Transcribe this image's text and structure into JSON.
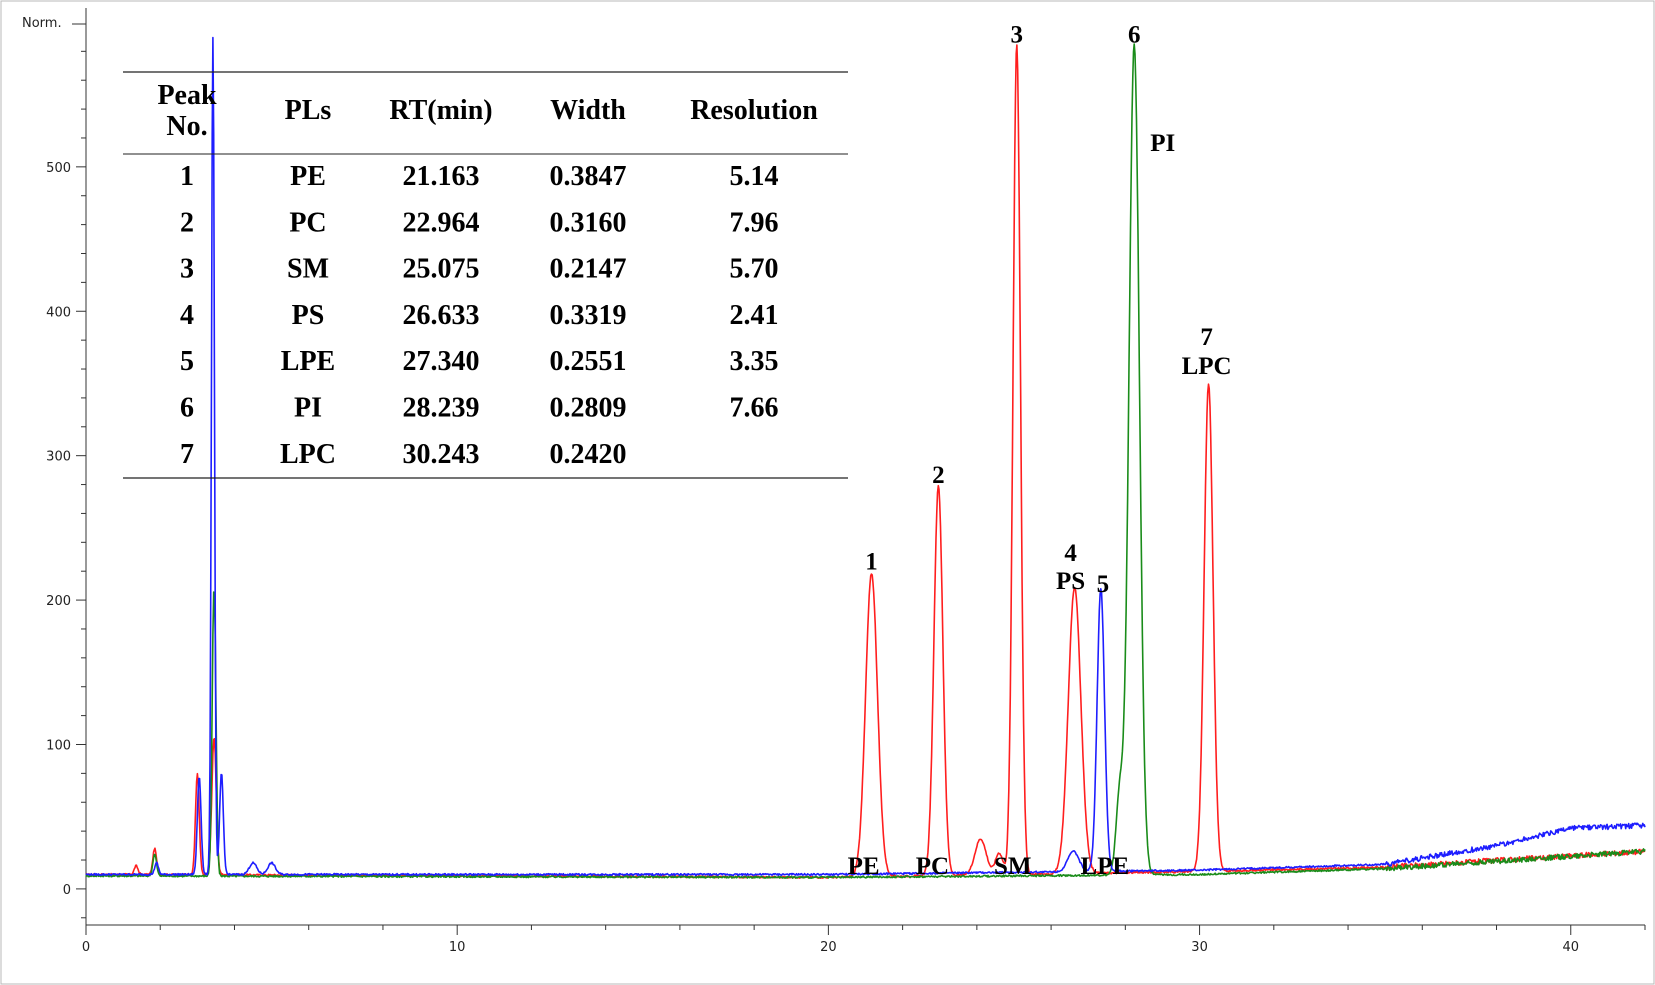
{
  "chart_data": {
    "type": "line",
    "y_axis_label": "Norm.",
    "xlim": [
      0,
      42
    ],
    "ylim": [
      -25,
      610
    ],
    "x_ticks": [
      "0",
      "10",
      "20",
      "30",
      "40"
    ],
    "x_tick_values": [
      0,
      10,
      20,
      30,
      40
    ],
    "y_ticks": [
      "0",
      "100",
      "200",
      "300",
      "400",
      "500"
    ],
    "y_tick_values": [
      0,
      100,
      200,
      300,
      400,
      500
    ],
    "colors": {
      "red": "#ff1e1e",
      "blue": "#1e1eff",
      "green": "#1a8c1a"
    },
    "series": [
      {
        "name": "red",
        "baseline": [
          [
            0,
            10
          ],
          [
            1.5,
            10
          ],
          [
            20,
            8
          ],
          [
            30,
            12
          ],
          [
            35,
            15
          ],
          [
            42,
            26
          ]
        ],
        "peaks": [
          [
            1.35,
            6,
            0.05
          ],
          [
            1.85,
            18,
            0.05
          ],
          [
            3.0,
            70,
            0.05
          ],
          [
            3.45,
            95,
            0.06
          ],
          [
            21.163,
            210,
            0.16
          ],
          [
            22.964,
            270,
            0.12
          ],
          [
            24.1,
            25,
            0.15
          ],
          [
            24.6,
            15,
            0.1
          ],
          [
            25.075,
            575,
            0.1
          ],
          [
            26.633,
            198,
            0.17
          ],
          [
            30.243,
            338,
            0.12
          ]
        ]
      },
      {
        "name": "blue",
        "baseline": [
          [
            0,
            10
          ],
          [
            1.5,
            10
          ],
          [
            20,
            10
          ],
          [
            30,
            13
          ],
          [
            35,
            17
          ],
          [
            38,
            30
          ],
          [
            40,
            42
          ],
          [
            42,
            44
          ]
        ],
        "peaks": [
          [
            1.9,
            8,
            0.05
          ],
          [
            3.05,
            68,
            0.05
          ],
          [
            3.42,
            580,
            0.04
          ],
          [
            3.65,
            70,
            0.05
          ],
          [
            4.5,
            8,
            0.1
          ],
          [
            5.0,
            8,
            0.1
          ],
          [
            26.6,
            14,
            0.15
          ],
          [
            27.34,
            196,
            0.1
          ]
        ]
      },
      {
        "name": "green",
        "baseline": [
          [
            0,
            9
          ],
          [
            1.5,
            9
          ],
          [
            20,
            8
          ],
          [
            30,
            10
          ],
          [
            35,
            14
          ],
          [
            42,
            26
          ]
        ],
        "peaks": [
          [
            1.85,
            15,
            0.05
          ],
          [
            3.45,
            200,
            0.05
          ],
          [
            27.85,
            55,
            0.1
          ],
          [
            28.239,
            575,
            0.14
          ]
        ]
      }
    ],
    "peak_labels": [
      {
        "number": "1",
        "name": "PE",
        "x": 21.163,
        "y": 210
      },
      {
        "number": "2",
        "name": "PC",
        "x": 22.964,
        "y": 270
      },
      {
        "number": "3",
        "name": "SM",
        "x": 25.075,
        "y": 575
      },
      {
        "number": "4",
        "name": "PS",
        "x": 26.633,
        "y": 198
      },
      {
        "number": "5",
        "name": "LPE",
        "x": 27.34,
        "y": 196
      },
      {
        "number": "6",
        "name": "PI",
        "x": 28.239,
        "y": 575
      },
      {
        "number": "7",
        "name": "LPC",
        "x": 30.243,
        "y": 338
      }
    ],
    "table": {
      "headers": [
        "Peak No.",
        "PLs",
        "RT(min)",
        "Width",
        "Resolution"
      ],
      "rows": [
        [
          "1",
          "PE",
          "21.163",
          "0.3847",
          "5.14"
        ],
        [
          "2",
          "PC",
          "22.964",
          "0.3160",
          "7.96"
        ],
        [
          "3",
          "SM",
          "25.075",
          "0.2147",
          "5.70"
        ],
        [
          "4",
          "PS",
          "26.633",
          "0.3319",
          "2.41"
        ],
        [
          "5",
          "LPE",
          "27.340",
          "0.2551",
          "3.35"
        ],
        [
          "6",
          "PI",
          "28.239",
          "0.2809",
          "7.66"
        ],
        [
          "7",
          "LPC",
          "30.243",
          "0.2420",
          ""
        ]
      ]
    }
  }
}
